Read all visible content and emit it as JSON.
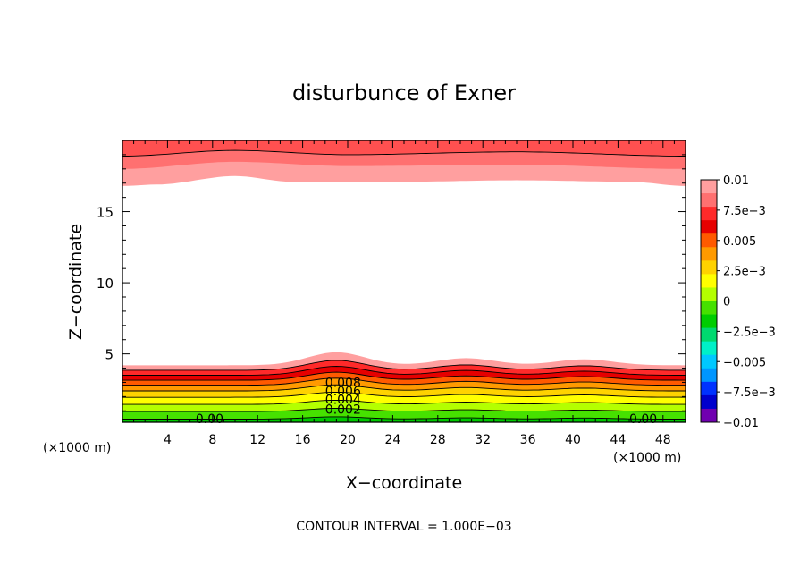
{
  "chart_data": {
    "type": "contour",
    "title": "disturbunce of Exner",
    "xlabel": "X−coordinate",
    "ylabel": "Z−coordinate",
    "x_unit_left": "(×1000 m)",
    "x_unit_right": "(×1000 m)",
    "footer": "CONTOUR INTERVAL = 1.000E−03",
    "xlim": [
      0,
      50
    ],
    "ylim": [
      0.2,
      20
    ],
    "x_ticks": [
      "4",
      "8",
      "12",
      "16",
      "20",
      "24",
      "28",
      "32",
      "36",
      "40",
      "44",
      "48"
    ],
    "x_tick_values": [
      4,
      8,
      12,
      16,
      20,
      24,
      28,
      32,
      36,
      40,
      44,
      48
    ],
    "y_ticks": [
      "5",
      "10",
      "15"
    ],
    "y_tick_values": [
      5,
      10,
      15
    ],
    "contour_labels": [
      {
        "text": "0.008",
        "x": 18,
        "y": 3.0
      },
      {
        "text": "0.006",
        "x": 18,
        "y": 2.4
      },
      {
        "text": "0.004",
        "x": 18,
        "y": 1.8
      },
      {
        "text": "0.002",
        "x": 18,
        "y": 1.1
      },
      {
        "text": "0.00",
        "x": 6.5,
        "y": 0.45
      },
      {
        "text": "0.00",
        "x": 45,
        "y": 0.45
      }
    ],
    "colorbar": {
      "labels": [
        "0.01",
        "7.5e−3",
        "0.005",
        "2.5e−3",
        "0",
        "−2.5e−3",
        "−0.005",
        "−7.5e−3",
        "−0.01"
      ],
      "min": -0.01,
      "max": 0.01,
      "colors_top_to_bottom": [
        "#ff9f9f",
        "#ff7070",
        "#ff2a2a",
        "#e60000",
        "#ff5a00",
        "#ff9a00",
        "#ffd200",
        "#ffff00",
        "#b4ff00",
        "#46e100",
        "#00cd00",
        "#00d96f",
        "#00f0c8",
        "#00c8ff",
        "#0096ff",
        "#0032ff",
        "#0000cd",
        "#7000b0"
      ]
    },
    "bottom_layer": {
      "levels": [
        0.0,
        0.001,
        0.002,
        0.003,
        0.004,
        0.005,
        0.006,
        0.007,
        0.008,
        0.009
      ],
      "band_colors": [
        "#00c800",
        "#46e100",
        "#b4ff00",
        "#ffff00",
        "#ffd200",
        "#ff9a00",
        "#ff5a00",
        "#e60000",
        "#ff2a2a",
        "#ff9f9f"
      ],
      "base_z": [
        0.42,
        0.95,
        1.45,
        1.95,
        2.4,
        2.8,
        3.15,
        3.5,
        3.85
      ],
      "bumps": [
        {
          "x": 19,
          "a": 0.55,
          "w": 3.6
        },
        {
          "x": 30.5,
          "a": 0.3,
          "w": 3.6
        },
        {
          "x": 41,
          "a": 0.25,
          "w": 3.6
        }
      ]
    },
    "top_layer": {
      "band_colors": [
        "#ff9f9f",
        "#ff7070",
        "#ff5050"
      ],
      "lower_boundary_z": [
        [
          0,
          16.8
        ],
        [
          3,
          16.9
        ],
        [
          10,
          17.5
        ],
        [
          15,
          17.1
        ],
        [
          25,
          17.1
        ],
        [
          35,
          17.2
        ],
        [
          45,
          17.1
        ],
        [
          50,
          16.8
        ]
      ],
      "contour_z": [
        [
          0,
          18.9
        ],
        [
          10,
          19.3
        ],
        [
          20,
          19.0
        ],
        [
          35,
          19.2
        ],
        [
          50,
          18.9
        ]
      ],
      "mid_band_z": [
        [
          0,
          18.0
        ],
        [
          10,
          18.5
        ],
        [
          20,
          18.2
        ],
        [
          35,
          18.3
        ],
        [
          50,
          18.0
        ]
      ]
    }
  }
}
